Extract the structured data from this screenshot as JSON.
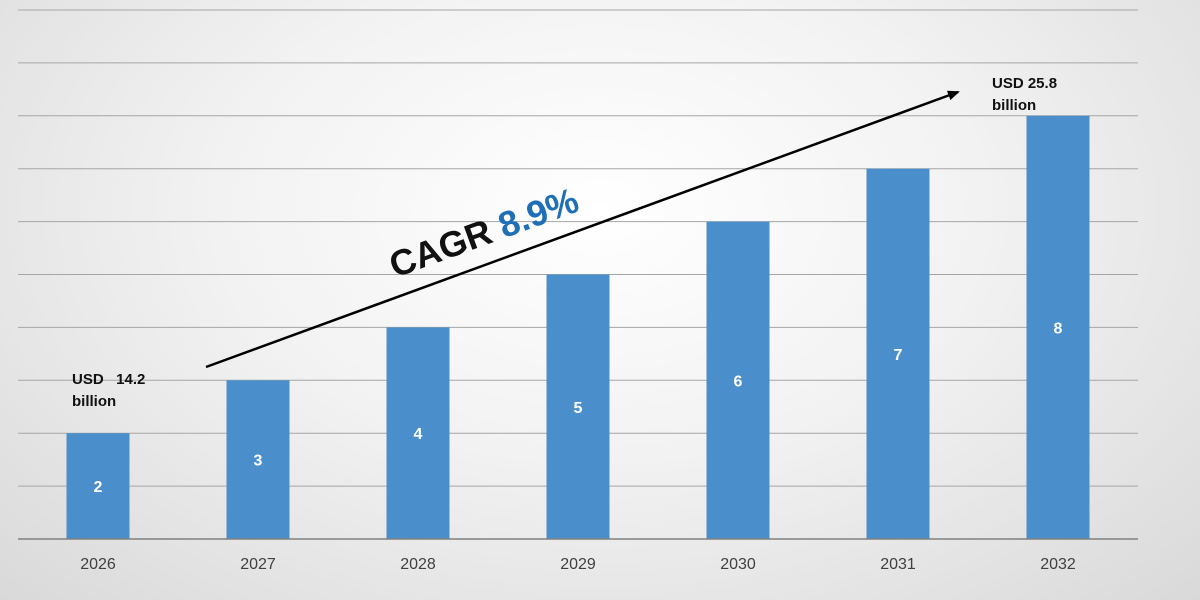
{
  "chart_data": {
    "type": "bar",
    "categories": [
      "2026",
      "2027",
      "2028",
      "2029",
      "2030",
      "2031",
      "2032"
    ],
    "values": [
      2,
      3,
      4,
      5,
      6,
      7,
      8
    ],
    "ylim": [
      0,
      10
    ],
    "grid": true,
    "annotations": {
      "start_label_line1": "USD   14.2",
      "start_label_line2": "billion",
      "end_label_line1": "USD 25.8",
      "end_label_line2": "billion",
      "cagr_prefix": "CAGR ",
      "cagr_value": "8.9%"
    }
  },
  "colors": {
    "bar": "#4a8fcb",
    "grid": "#a6a6a6",
    "axis": "#808080",
    "cagr_value": "#1f6fb8",
    "cagr_prefix": "#111111",
    "arrow": "#000000"
  }
}
